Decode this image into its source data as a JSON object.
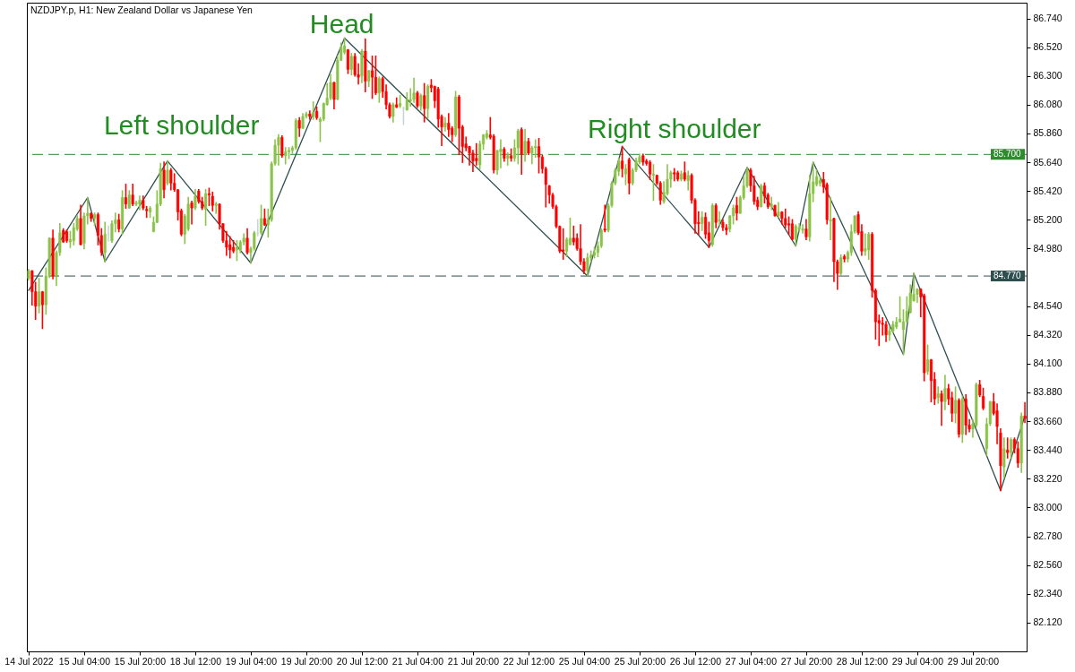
{
  "chart_data": {
    "type": "candlestick",
    "title": "NZDJPY.p, H1:  New Zealand Dollar vs Japanese Yen",
    "categories": [
      "14 Jul 2022",
      null,
      null,
      null,
      null,
      null,
      null,
      null,
      null,
      null,
      null,
      null,
      null,
      null,
      null,
      null,
      "15 Jul 04:00",
      null,
      null,
      null,
      null,
      null,
      null,
      null,
      null,
      null,
      null,
      null,
      null,
      null,
      null,
      null,
      "15 Jul 20:00",
      null,
      null,
      null,
      null,
      null,
      null,
      null,
      null,
      null,
      null,
      null,
      null,
      null,
      null,
      null,
      "18 Jul 12:00",
      null,
      null,
      null,
      null,
      null,
      null,
      null,
      null,
      null,
      null,
      null,
      null,
      null,
      null,
      null,
      "19 Jul 04:00",
      null,
      null,
      null,
      null,
      null,
      null,
      null,
      null,
      null,
      null,
      null,
      null,
      null,
      null,
      null,
      "19 Jul 20:00",
      null,
      null,
      null,
      null,
      null,
      null,
      null,
      null,
      null,
      null,
      null,
      null,
      null,
      null,
      null,
      "20 Jul 12:00",
      null,
      null,
      null,
      null,
      null,
      null,
      null,
      null,
      null,
      null,
      null,
      null,
      null,
      null,
      null,
      "21 Jul 04:00",
      null,
      null,
      null,
      null,
      null,
      null,
      null,
      null,
      null,
      null,
      null,
      null,
      null,
      null,
      null,
      "21 Jul 20:00",
      null,
      null,
      null,
      null,
      null,
      null,
      null,
      null,
      null,
      null,
      null,
      null,
      null,
      null,
      null,
      "22 Jul 12:00",
      null,
      null,
      null,
      null,
      null,
      null,
      null,
      null,
      null,
      null,
      null,
      null,
      null,
      null,
      null,
      "25 Jul 04:00",
      null,
      null,
      null,
      null,
      null,
      null,
      null,
      null,
      null,
      null,
      null,
      null,
      null,
      null,
      null,
      "25 Jul 20:00",
      null,
      null,
      null,
      null,
      null,
      null,
      null,
      null,
      null,
      null,
      null,
      null,
      null,
      null,
      null,
      "26 Jul 12:00",
      null,
      null,
      null,
      null,
      null,
      null,
      null,
      null,
      null,
      null,
      null,
      null,
      null,
      null,
      null,
      "27 Jul 04:00",
      null,
      null,
      null,
      null,
      null,
      null,
      null,
      null,
      null,
      null,
      null,
      null,
      null,
      null,
      null,
      "27 Jul 20:00",
      null,
      null,
      null,
      null,
      null,
      null,
      null,
      null,
      null,
      null,
      null,
      null,
      null,
      null,
      null,
      "28 Jul 12:00",
      null,
      null,
      null,
      null,
      null,
      null,
      null,
      null,
      null,
      null,
      null,
      null,
      null,
      null,
      null,
      "29 Jul 04:00",
      null,
      null,
      null,
      null,
      null,
      null,
      null,
      null,
      null,
      null,
      null,
      null,
      null,
      null,
      null,
      "29 Jul 20:00",
      null,
      null,
      null,
      null,
      null,
      null,
      null,
      null,
      null,
      null,
      null,
      null,
      null,
      null,
      null
    ],
    "ohlc": [
      [
        84.75,
        84.82,
        84.74,
        84.81
      ],
      [
        84.81,
        84.81,
        84.55,
        84.65
      ],
      [
        84.65,
        84.72,
        84.44,
        84.54
      ],
      [
        84.54,
        84.75,
        84.49,
        84.65
      ],
      [
        84.65,
        84.65,
        84.37,
        84.55
      ],
      [
        84.55,
        84.83,
        84.48,
        84.77
      ],
      [
        84.77,
        85.06,
        84.76,
        85.06
      ],
      [
        85.06,
        85.12,
        84.75,
        84.77
      ],
      [
        84.77,
        84.96,
        84.7,
        84.95
      ],
      [
        84.95,
        85.17,
        84.93,
        85.1
      ],
      [
        85.12,
        85.13,
        85.03,
        85.03
      ],
      [
        85.11,
        85.12,
        85.03,
        85.04
      ],
      [
        85.03,
        85.11,
        84.99,
        85.05
      ],
      [
        85.04,
        85.17,
        85.01,
        85.14
      ],
      [
        85.13,
        85.23,
        85.12,
        85.21
      ],
      [
        85.21,
        85.31,
        85.01,
        85.01
      ],
      [
        85.02,
        85.25,
        84.98,
        85.23
      ],
      [
        85.23,
        85.37,
        85.17,
        85.25
      ],
      [
        85.25,
        85.25,
        85.19,
        85.21
      ],
      [
        85.21,
        85.25,
        85.16,
        85.24
      ],
      [
        85.24,
        85.25,
        85.01,
        85.08
      ],
      [
        85.08,
        85.13,
        84.93,
        84.95
      ],
      [
        84.95,
        85.18,
        84.88,
        85.09
      ],
      [
        85.09,
        85.15,
        85.04,
        85.09
      ],
      [
        85.04,
        85.19,
        85.03,
        85.17
      ],
      [
        85.17,
        85.25,
        85.11,
        85.2
      ],
      [
        85.2,
        85.24,
        85.11,
        85.13
      ],
      [
        85.13,
        85.42,
        85.09,
        85.37
      ],
      [
        85.37,
        85.47,
        85.29,
        85.32
      ],
      [
        85.29,
        85.42,
        85.29,
        85.39
      ],
      [
        85.39,
        85.47,
        85.31,
        85.32
      ],
      [
        85.32,
        85.34,
        85.31,
        85.33
      ],
      [
        85.32,
        85.38,
        85.28,
        85.35
      ],
      [
        85.35,
        85.38,
        85.28,
        85.29
      ],
      [
        85.28,
        85.3,
        85.22,
        85.27
      ],
      [
        85.26,
        85.3,
        85.22,
        85.29
      ],
      [
        85.11,
        85.22,
        85.11,
        85.18
      ],
      [
        85.18,
        85.42,
        85.18,
        85.32
      ],
      [
        85.32,
        85.63,
        85.31,
        85.59
      ],
      [
        85.58,
        85.64,
        85.37,
        85.43
      ],
      [
        85.48,
        85.65,
        85.47,
        85.58
      ],
      [
        85.58,
        85.59,
        85.43,
        85.48
      ],
      [
        85.48,
        85.55,
        85.42,
        85.43
      ],
      [
        85.43,
        85.43,
        85.2,
        85.26
      ],
      [
        85.27,
        85.28,
        85.08,
        85.09
      ],
      [
        85.09,
        85.24,
        85.02,
        85.23
      ],
      [
        85.13,
        85.37,
        85.12,
        85.32
      ],
      [
        85.33,
        85.34,
        85.17,
        85.29
      ],
      [
        85.29,
        85.43,
        85.28,
        85.38
      ],
      [
        85.42,
        85.43,
        85.33,
        85.34
      ],
      [
        85.34,
        85.37,
        85.28,
        85.29
      ],
      [
        85.28,
        85.43,
        85.16,
        85.4
      ],
      [
        85.4,
        85.44,
        85.31,
        85.39
      ],
      [
        85.38,
        85.41,
        85.27,
        85.31
      ],
      [
        85.31,
        85.33,
        85.25,
        85.32
      ],
      [
        85.32,
        85.32,
        85.13,
        85.17
      ],
      [
        85.17,
        85.17,
        85.03,
        85.04
      ],
      [
        85.04,
        85.11,
        84.93,
        84.99
      ],
      [
        85.01,
        85.07,
        84.91,
        84.97
      ],
      [
        84.99,
        85.04,
        84.95,
        84.96
      ],
      [
        84.97,
        85.04,
        84.89,
        84.99
      ],
      [
        84.97,
        85.04,
        84.95,
        85.03
      ],
      [
        85.03,
        85.09,
        85.01,
        85.06
      ],
      [
        85.06,
        85.13,
        84.94,
        84.95
      ],
      [
        84.95,
        84.99,
        84.87,
        84.98
      ],
      [
        84.98,
        85.11,
        84.97,
        85.1
      ],
      [
        85.1,
        85.2,
        85.08,
        85.1
      ],
      [
        85.1,
        85.31,
        85.09,
        85.21
      ],
      [
        85.21,
        85.28,
        85.16,
        85.16
      ],
      [
        85.16,
        85.28,
        85.07,
        85.2
      ],
      [
        85.2,
        85.64,
        85.19,
        85.63
      ],
      [
        85.63,
        85.81,
        85.62,
        85.77
      ],
      [
        85.77,
        85.85,
        85.62,
        85.83
      ],
      [
        85.83,
        85.84,
        85.68,
        85.69
      ],
      [
        85.69,
        85.75,
        85.63,
        85.72
      ],
      [
        85.72,
        85.75,
        85.67,
        85.73
      ],
      [
        85.73,
        85.76,
        85.71,
        85.75
      ],
      [
        85.75,
        85.97,
        85.74,
        85.96
      ],
      [
        85.96,
        85.98,
        85.84,
        85.9
      ],
      [
        85.9,
        86.01,
        85.9,
        85.99
      ],
      [
        85.99,
        86.02,
        85.98,
        86.01
      ],
      [
        86.01,
        86.03,
        85.97,
        85.99
      ],
      [
        85.99,
        86.1,
        85.97,
        86.02
      ],
      [
        86.03,
        86.06,
        85.97,
        85.98
      ],
      [
        85.95,
        85.98,
        85.8,
        85.97
      ],
      [
        85.97,
        86.09,
        85.96,
        86.09
      ],
      [
        86.08,
        86.24,
        86.08,
        86.13
      ],
      [
        86.13,
        86.31,
        86.12,
        86.25
      ],
      [
        86.25,
        86.25,
        86.05,
        86.12
      ],
      [
        86.12,
        86.45,
        86.12,
        86.42
      ],
      [
        86.42,
        86.55,
        86.42,
        86.52
      ],
      [
        86.48,
        86.59,
        86.47,
        86.53
      ],
      [
        86.5,
        86.5,
        86.32,
        86.35
      ],
      [
        86.35,
        86.47,
        86.31,
        86.45
      ],
      [
        86.45,
        86.47,
        86.3,
        86.31
      ],
      [
        86.31,
        86.39,
        86.24,
        86.29
      ],
      [
        86.3,
        86.5,
        86.25,
        86.49
      ],
      [
        86.49,
        86.58,
        86.18,
        86.26
      ],
      [
        86.26,
        86.34,
        86.22,
        86.34
      ],
      [
        86.34,
        86.45,
        86.13,
        86.29
      ],
      [
        86.29,
        86.45,
        86.16,
        86.17
      ],
      [
        86.17,
        86.29,
        86.1,
        86.28
      ],
      [
        86.28,
        86.29,
        86.14,
        86.18
      ],
      [
        86.18,
        86.23,
        86.05,
        86.08
      ],
      [
        86.08,
        86.09,
        85.98,
        85.99
      ],
      [
        85.99,
        86.09,
        85.95,
        86.08
      ],
      [
        86.08,
        86.13,
        86.06,
        86.06
      ],
      [
        86.07,
        86.15,
        86.06,
        86.09
      ],
      [
        86.05,
        86.06,
        85.93,
        86.05
      ],
      [
        86.04,
        86.17,
        86.04,
        86.12
      ],
      [
        86.11,
        86.2,
        86.07,
        86.12
      ],
      [
        86.12,
        86.28,
        86.1,
        86.17
      ],
      [
        86.17,
        86.18,
        86.06,
        86.07
      ],
      [
        86.07,
        86.16,
        86.04,
        86.15
      ],
      [
        86.15,
        86.24,
        85.95,
        86.05
      ],
      [
        86.05,
        86.23,
        85.98,
        86.22
      ],
      [
        86.23,
        86.27,
        86.18,
        86.21
      ],
      [
        86.22,
        86.22,
        86.06,
        86.11
      ],
      [
        86.2,
        86.21,
        85.91,
        85.97
      ],
      [
        85.99,
        86.0,
        85.77,
        85.91
      ],
      [
        85.91,
        85.98,
        85.88,
        85.94
      ],
      [
        85.94,
        86.01,
        85.84,
        85.89
      ],
      [
        85.9,
        85.91,
        85.8,
        85.85
      ],
      [
        85.85,
        86.18,
        85.84,
        86.14
      ],
      [
        86.14,
        86.15,
        85.7,
        85.9
      ],
      [
        85.91,
        85.92,
        85.64,
        85.76
      ],
      [
        85.78,
        85.83,
        85.73,
        85.75
      ],
      [
        85.76,
        85.76,
        85.62,
        85.71
      ],
      [
        85.71,
        85.73,
        85.57,
        85.65
      ],
      [
        85.67,
        85.78,
        85.62,
        85.65
      ],
      [
        85.62,
        85.8,
        85.59,
        85.78
      ],
      [
        85.78,
        85.85,
        85.74,
        85.85
      ],
      [
        85.83,
        85.88,
        85.82,
        85.86
      ],
      [
        85.85,
        85.98,
        85.82,
        85.83
      ],
      [
        85.84,
        85.85,
        85.56,
        85.58
      ],
      [
        85.58,
        85.73,
        85.55,
        85.73
      ],
      [
        85.72,
        85.81,
        85.6,
        85.74
      ],
      [
        85.74,
        85.75,
        85.65,
        85.67
      ],
      [
        85.67,
        85.71,
        85.62,
        85.69
      ],
      [
        85.69,
        85.74,
        85.65,
        85.67
      ],
      [
        85.67,
        85.81,
        85.65,
        85.75
      ],
      [
        85.75,
        85.89,
        85.63,
        85.88
      ],
      [
        85.89,
        85.9,
        85.55,
        85.7
      ],
      [
        85.7,
        85.89,
        85.65,
        85.8
      ],
      [
        85.8,
        85.82,
        85.7,
        85.71
      ],
      [
        85.71,
        85.76,
        85.63,
        85.75
      ],
      [
        85.75,
        85.81,
        85.68,
        85.76
      ],
      [
        85.76,
        85.82,
        85.56,
        85.68
      ],
      [
        85.68,
        85.69,
        85.56,
        85.59
      ],
      [
        85.59,
        85.6,
        85.3,
        85.47
      ],
      [
        85.46,
        85.46,
        85.33,
        85.39
      ],
      [
        85.39,
        85.4,
        85.29,
        85.3
      ],
      [
        85.3,
        85.31,
        85.14,
        85.15
      ],
      [
        85.15,
        85.15,
        84.95,
        84.96
      ],
      [
        84.97,
        85.13,
        84.9,
        84.96
      ],
      [
        84.96,
        85.06,
        84.92,
        85.05
      ],
      [
        85.01,
        85.21,
        85.01,
        85.06
      ],
      [
        85.06,
        85.15,
        85.01,
        85.03
      ],
      [
        85.06,
        85.09,
        84.97,
        84.98
      ],
      [
        84.98,
        85.16,
        84.86,
        84.88
      ],
      [
        84.88,
        84.9,
        84.79,
        84.81
      ],
      [
        84.81,
        84.94,
        84.77,
        84.91
      ],
      [
        84.91,
        84.96,
        84.88,
        84.93
      ],
      [
        84.93,
        84.99,
        84.91,
        84.95
      ],
      [
        84.95,
        85.03,
        84.92,
        85.0
      ],
      [
        85.0,
        85.13,
        84.99,
        85.12
      ],
      [
        85.13,
        85.31,
        85.11,
        85.12
      ],
      [
        85.12,
        85.32,
        85.11,
        85.31
      ],
      [
        85.31,
        85.49,
        85.3,
        85.48
      ],
      [
        85.48,
        85.59,
        85.47,
        85.58
      ],
      [
        85.57,
        85.67,
        85.54,
        85.65
      ],
      [
        85.65,
        85.76,
        85.53,
        85.59
      ],
      [
        85.55,
        85.62,
        85.47,
        85.59
      ],
      [
        85.66,
        85.67,
        85.4,
        85.48
      ],
      [
        85.48,
        85.59,
        85.47,
        85.58
      ],
      [
        85.58,
        85.67,
        85.57,
        85.65
      ],
      [
        85.64,
        85.7,
        85.63,
        85.68
      ],
      [
        85.69,
        85.7,
        85.62,
        85.64
      ],
      [
        85.65,
        85.66,
        85.62,
        85.63
      ],
      [
        85.64,
        85.65,
        85.51,
        85.55
      ],
      [
        85.54,
        85.62,
        85.35,
        85.55
      ],
      [
        85.54,
        85.54,
        85.47,
        85.48
      ],
      [
        85.48,
        85.49,
        85.32,
        85.35
      ],
      [
        85.34,
        85.49,
        85.33,
        85.41
      ],
      [
        85.4,
        85.62,
        85.39,
        85.51
      ],
      [
        85.51,
        85.57,
        85.45,
        85.56
      ],
      [
        85.56,
        85.59,
        85.5,
        85.55
      ],
      [
        85.56,
        85.57,
        85.5,
        85.51
      ],
      [
        85.51,
        85.57,
        85.5,
        85.55
      ],
      [
        85.56,
        85.64,
        85.5,
        85.51
      ],
      [
        85.5,
        85.57,
        85.43,
        85.54
      ],
      [
        85.54,
        85.55,
        85.33,
        85.35
      ],
      [
        85.35,
        85.36,
        85.1,
        85.17
      ],
      [
        85.18,
        85.26,
        85.09,
        85.17
      ],
      [
        85.17,
        85.26,
        85.12,
        85.22
      ],
      [
        85.22,
        85.25,
        85.06,
        85.09
      ],
      [
        85.1,
        85.18,
        84.99,
        85.04
      ],
      [
        85.01,
        85.32,
        85.0,
        85.31
      ],
      [
        85.31,
        85.32,
        85.14,
        85.18
      ],
      [
        85.19,
        85.26,
        85.16,
        85.2
      ],
      [
        85.18,
        85.2,
        85.12,
        85.14
      ],
      [
        85.14,
        85.16,
        85.09,
        85.12
      ],
      [
        85.13,
        85.23,
        85.11,
        85.23
      ],
      [
        85.23,
        85.31,
        85.17,
        85.29
      ],
      [
        85.31,
        85.37,
        85.2,
        85.25
      ],
      [
        85.25,
        85.38,
        85.25,
        85.37
      ],
      [
        85.37,
        85.53,
        85.36,
        85.46
      ],
      [
        85.46,
        85.6,
        85.45,
        85.58
      ],
      [
        85.58,
        85.59,
        85.42,
        85.46
      ],
      [
        85.46,
        85.53,
        85.32,
        85.34
      ],
      [
        85.35,
        85.37,
        85.28,
        85.3
      ],
      [
        85.3,
        85.47,
        85.3,
        85.46
      ],
      [
        85.46,
        85.48,
        85.33,
        85.38
      ],
      [
        85.39,
        85.4,
        85.29,
        85.3
      ],
      [
        85.3,
        85.37,
        85.28,
        85.32
      ],
      [
        85.31,
        85.31,
        85.23,
        85.23
      ],
      [
        85.23,
        85.33,
        85.22,
        85.26
      ],
      [
        85.26,
        85.26,
        85.17,
        85.21
      ],
      [
        85.21,
        85.28,
        85.14,
        85.16
      ],
      [
        85.17,
        85.22,
        85.09,
        85.16
      ],
      [
        85.17,
        85.2,
        85.05,
        85.05
      ],
      [
        85.05,
        85.16,
        85.0,
        85.15
      ],
      [
        85.13,
        85.17,
        85.11,
        85.14
      ],
      [
        85.12,
        85.16,
        85.1,
        85.13
      ],
      [
        85.13,
        85.2,
        85.05,
        85.07
      ],
      [
        85.07,
        85.54,
        85.04,
        85.4
      ],
      [
        85.4,
        85.64,
        85.34,
        85.49
      ],
      [
        85.47,
        85.58,
        85.46,
        85.53
      ],
      [
        85.48,
        85.53,
        85.46,
        85.5
      ],
      [
        85.51,
        85.56,
        85.41,
        85.45
      ],
      [
        85.47,
        85.48,
        85.17,
        85.2
      ],
      [
        85.19,
        85.37,
        85.05,
        85.2
      ],
      [
        85.21,
        85.21,
        84.73,
        84.88
      ],
      [
        84.88,
        84.89,
        84.67,
        84.79
      ],
      [
        84.79,
        84.93,
        84.78,
        84.91
      ],
      [
        84.92,
        84.93,
        84.88,
        84.9
      ],
      [
        84.9,
        84.96,
        84.88,
        84.95
      ],
      [
        84.95,
        85.16,
        84.93,
        85.11
      ],
      [
        85.11,
        85.23,
        85.1,
        85.23
      ],
      [
        85.24,
        85.26,
        85.09,
        85.1
      ],
      [
        85.11,
        85.16,
        84.93,
        84.96
      ],
      [
        84.96,
        85.09,
        84.93,
        84.98
      ],
      [
        84.97,
        85.1,
        84.9,
        85.09
      ],
      [
        85.09,
        85.1,
        84.61,
        84.66
      ],
      [
        84.66,
        84.67,
        84.29,
        84.42
      ],
      [
        84.43,
        84.47,
        84.24,
        84.41
      ],
      [
        84.41,
        84.45,
        84.32,
        84.4
      ],
      [
        84.4,
        84.42,
        84.27,
        84.32
      ],
      [
        84.32,
        84.38,
        84.28,
        84.35
      ],
      [
        84.35,
        84.42,
        84.34,
        84.4
      ],
      [
        84.38,
        84.45,
        84.37,
        84.42
      ],
      [
        84.42,
        84.61,
        84.42,
        84.44
      ],
      [
        84.36,
        84.51,
        84.17,
        84.42
      ],
      [
        84.42,
        84.61,
        84.42,
        84.5
      ],
      [
        84.49,
        84.7,
        84.49,
        84.64
      ],
      [
        84.58,
        84.79,
        84.58,
        84.63
      ],
      [
        84.63,
        84.67,
        84.57,
        84.67
      ],
      [
        84.67,
        84.67,
        84.46,
        84.61
      ],
      [
        84.62,
        84.63,
        83.97,
        84.03
      ],
      [
        84.04,
        84.24,
        84.02,
        84.13
      ],
      [
        84.13,
        84.13,
        83.81,
        83.97
      ],
      [
        83.98,
        84.03,
        83.79,
        83.83
      ],
      [
        83.84,
        83.92,
        83.8,
        83.87
      ],
      [
        83.87,
        83.89,
        83.63,
        83.81
      ],
      [
        83.81,
        84.01,
        83.75,
        83.91
      ],
      [
        83.91,
        83.94,
        83.79,
        83.83
      ],
      [
        83.84,
        83.88,
        83.66,
        83.72
      ],
      [
        83.72,
        83.92,
        83.65,
        83.82
      ],
      [
        83.82,
        83.83,
        83.54,
        83.56
      ],
      [
        83.56,
        83.85,
        83.5,
        83.83
      ],
      [
        83.83,
        83.86,
        83.56,
        83.63
      ],
      [
        83.63,
        83.67,
        83.58,
        83.6
      ],
      [
        83.6,
        83.67,
        83.54,
        83.64
      ],
      [
        83.63,
        83.95,
        83.62,
        83.94
      ],
      [
        83.94,
        83.97,
        83.85,
        83.86
      ],
      [
        83.85,
        83.91,
        83.75,
        83.76
      ],
      [
        83.45,
        83.68,
        83.4,
        83.64
      ],
      [
        83.64,
        83.81,
        83.63,
        83.81
      ],
      [
        83.81,
        83.87,
        83.71,
        83.72
      ],
      [
        83.74,
        83.79,
        83.49,
        83.62
      ],
      [
        83.57,
        83.6,
        83.13,
        83.32
      ],
      [
        83.31,
        83.53,
        83.23,
        83.45
      ],
      [
        83.44,
        83.53,
        83.38,
        83.42
      ],
      [
        83.42,
        83.53,
        83.38,
        83.52
      ],
      [
        83.52,
        83.53,
        83.42,
        83.45
      ],
      [
        83.45,
        83.5,
        83.31,
        83.34
      ],
      [
        83.34,
        83.72,
        83.27,
        83.7
      ],
      [
        83.7,
        83.8,
        83.65,
        83.68
      ]
    ],
    "colors": [
      "#8bc34a",
      "#ff0000",
      "#ff0000",
      "#8bc34a",
      "#ff0000",
      "#8bc34a",
      "#8bc34a",
      "#ff0000",
      "#8bc34a",
      "#8bc34a",
      "#ff0000",
      "#ff0000",
      "#8bc34a",
      "#8bc34a",
      "#8bc34a",
      "#ff0000",
      "#8bc34a",
      "#8bc34a",
      "#ff0000",
      "#8bc34a",
      "#ff0000",
      "#ff0000",
      "#8bc34a",
      "#c8d4d8",
      "#8bc34a",
      "#8bc34a",
      "#ff0000",
      "#8bc34a",
      "#ff0000",
      "#8bc34a",
      "#ff0000",
      "#8bc34a",
      "#8bc34a",
      "#ff0000",
      "#ff0000",
      "#8bc34a",
      "#8bc34a",
      "#8bc34a",
      "#8bc34a",
      "#ff0000",
      "#8bc34a",
      "#ff0000",
      "#ff0000",
      "#ff0000",
      "#ff0000",
      "#8bc34a",
      "#8bc34a",
      "#ff0000",
      "#8bc34a",
      "#ff0000",
      "#ff0000",
      "#8bc34a",
      "#ff0000",
      "#ff0000",
      "#8bc34a",
      "#ff0000",
      "#ff0000",
      "#ff0000",
      "#ff0000",
      "#ff0000",
      "#8bc34a",
      "#8bc34a",
      "#8bc34a",
      "#ff0000",
      "#8bc34a",
      "#8bc34a",
      "#c8d4d8",
      "#8bc34a",
      "#ff0000",
      "#8bc34a",
      "#8bc34a",
      "#8bc34a",
      "#8bc34a",
      "#ff0000",
      "#8bc34a",
      "#8bc34a",
      "#8bc34a",
      "#8bc34a",
      "#ff0000",
      "#8bc34a",
      "#8bc34a",
      "#ff0000",
      "#8bc34a",
      "#ff0000",
      "#8bc34a",
      "#8bc34a",
      "#8bc34a",
      "#8bc34a",
      "#ff0000",
      "#8bc34a",
      "#8bc34a",
      "#8bc34a",
      "#ff0000",
      "#8bc34a",
      "#ff0000",
      "#ff0000",
      "#8bc34a",
      "#ff0000",
      "#8bc34a",
      "#ff0000",
      "#ff0000",
      "#8bc34a",
      "#ff0000",
      "#ff0000",
      "#ff0000",
      "#8bc34a",
      "#ff0000",
      "#8bc34a",
      "#c8d4d8",
      "#8bc34a",
      "#8bc34a",
      "#8bc34a",
      "#ff0000",
      "#8bc34a",
      "#ff0000",
      "#8bc34a",
      "#ff0000",
      "#ff0000",
      "#ff0000",
      "#ff0000",
      "#8bc34a",
      "#ff0000",
      "#ff0000",
      "#8bc34a",
      "#ff0000",
      "#ff0000",
      "#ff0000",
      "#ff0000",
      "#ff0000",
      "#ff0000",
      "#8bc34a",
      "#8bc34a",
      "#8bc34a",
      "#ff0000",
      "#ff0000",
      "#8bc34a",
      "#8bc34a",
      "#ff0000",
      "#8bc34a",
      "#ff0000",
      "#8bc34a",
      "#8bc34a",
      "#ff0000",
      "#8bc34a",
      "#ff0000",
      "#8bc34a",
      "#8bc34a",
      "#ff0000",
      "#ff0000",
      "#ff0000",
      "#ff0000",
      "#ff0000",
      "#ff0000",
      "#ff0000",
      "#ff0000",
      "#8bc34a",
      "#8bc34a",
      "#ff0000",
      "#ff0000",
      "#ff0000",
      "#ff0000",
      "#8bc34a",
      "#8bc34a",
      "#8bc34a",
      "#8bc34a",
      "#8bc34a",
      "#ff0000",
      "#8bc34a",
      "#8bc34a",
      "#8bc34a",
      "#8bc34a",
      "#ff0000",
      "#8bc34a",
      "#ff0000",
      "#8bc34a",
      "#8bc34a",
      "#8bc34a",
      "#ff0000",
      "#ff0000",
      "#ff0000",
      "#8bc34a",
      "#ff0000",
      "#ff0000",
      "#8bc34a",
      "#8bc34a",
      "#8bc34a",
      "#ff0000",
      "#ff0000",
      "#8bc34a",
      "#ff0000",
      "#8bc34a",
      "#ff0000",
      "#ff0000",
      "#ff0000",
      "#8bc34a",
      "#ff0000",
      "#ff0000",
      "#8bc34a",
      "#ff0000",
      "#8bc34a",
      "#ff0000",
      "#ff0000",
      "#8bc34a",
      "#8bc34a",
      "#ff0000",
      "#8bc34a",
      "#8bc34a",
      "#8bc34a",
      "#ff0000",
      "#ff0000",
      "#ff0000",
      "#8bc34a",
      "#ff0000",
      "#ff0000",
      "#8bc34a",
      "#ff0000",
      "#8bc34a",
      "#ff0000",
      "#ff0000",
      "#ff0000",
      "#ff0000",
      "#8bc34a",
      "#8bc34a",
      "#8bc34a",
      "#ff0000",
      "#8bc34a",
      "#8bc34a",
      "#8bc34a",
      "#8bc34a",
      "#ff0000",
      "#ff0000",
      "#8bc34a",
      "#ff0000",
      "#ff0000",
      "#8bc34a",
      "#ff0000",
      "#8bc34a",
      "#8bc34a",
      "#8bc34a",
      "#ff0000",
      "#ff0000",
      "#8bc34a",
      "#8bc34a",
      "#ff0000",
      "#ff0000",
      "#ff0000",
      "#ff0000",
      "#ff0000",
      "#8bc34a",
      "#8bc34a",
      "#8bc34a",
      "#8bc34a",
      "#8bc34a",
      "#8bc34a",
      "#8bc34a",
      "#8bc34a",
      "#8bc34a",
      "#ff0000",
      "#ff0000",
      "#8bc34a",
      "#ff0000",
      "#ff0000",
      "#8bc34a",
      "#ff0000",
      "#8bc34a",
      "#ff0000",
      "#ff0000",
      "#8bc34a",
      "#ff0000",
      "#8bc34a",
      "#ff0000",
      "#ff0000",
      "#8bc34a",
      "#8bc34a",
      "#ff0000",
      "#ff0000",
      "#8bc34a",
      "#8bc34a",
      "#ff0000",
      "#ff0000",
      "#ff0000",
      "#8bc34a",
      "#ff0000",
      "#8bc34a",
      "#ff0000",
      "#ff0000",
      "#8bc34a",
      "#ff0000"
    ],
    "series": [
      {
        "type": "line",
        "color": "#2f4f4f",
        "values": [
          84.66,
          null,
          null,
          null,
          null,
          null,
          null,
          null,
          null,
          null,
          null,
          null,
          null,
          null,
          null,
          null,
          null,
          85.37,
          null,
          null,
          null,
          null,
          84.88,
          null,
          null,
          null,
          null,
          null,
          null,
          null,
          null,
          null,
          null,
          null,
          null,
          null,
          null,
          null,
          null,
          null,
          85.65,
          null,
          null,
          null,
          null,
          null,
          null,
          null,
          null,
          null,
          null,
          null,
          null,
          null,
          null,
          null,
          null,
          null,
          null,
          null,
          null,
          null,
          null,
          null,
          84.87,
          null,
          null,
          null,
          null,
          null,
          null,
          null,
          null,
          null,
          null,
          null,
          null,
          null,
          null,
          null,
          null,
          null,
          null,
          null,
          null,
          null,
          null,
          null,
          null,
          null,
          null,
          86.59,
          null,
          null,
          null,
          null,
          null,
          null,
          null,
          null,
          null,
          null,
          null,
          null,
          null,
          null,
          null,
          null,
          null,
          null,
          null,
          null,
          null,
          null,
          null,
          null,
          null,
          null,
          null,
          null,
          null,
          null,
          null,
          null,
          null,
          null,
          null,
          null,
          null,
          null,
          null,
          null,
          null,
          null,
          null,
          null,
          null,
          null,
          null,
          null,
          null,
          null,
          null,
          null,
          null,
          null,
          null,
          null,
          null,
          null,
          null,
          null,
          null,
          null,
          null,
          null,
          null,
          null,
          null,
          null,
          null,
          84.77,
          null,
          null,
          null,
          null,
          null,
          null,
          null,
          null,
          null,
          85.76,
          null,
          null,
          null,
          null,
          null,
          null,
          null,
          null,
          null,
          null,
          null,
          null,
          null,
          null,
          null,
          null,
          null,
          null,
          null,
          null,
          null,
          null,
          null,
          null,
          84.99,
          null,
          null,
          null,
          null,
          null,
          null,
          null,
          null,
          null,
          null,
          85.6,
          null,
          null,
          null,
          null,
          null,
          null,
          null,
          null,
          null,
          null,
          null,
          null,
          null,
          85.0,
          null,
          null,
          null,
          null,
          85.64,
          null,
          null,
          null,
          null,
          null,
          null,
          null,
          null,
          null,
          null,
          null,
          null,
          null,
          null,
          null,
          null,
          null,
          null,
          null,
          null,
          null,
          null,
          null,
          null,
          null,
          84.17,
          null,
          null,
          84.79,
          null,
          null,
          null,
          null,
          null,
          null,
          null,
          null,
          null,
          null,
          null,
          null,
          null,
          null,
          null,
          null,
          null,
          null,
          null,
          null,
          null,
          null,
          null,
          null,
          83.13,
          null,
          null,
          null,
          null,
          null,
          null,
          83.7
        ]
      }
    ],
    "ylim": [
      81.9,
      86.86
    ],
    "yticks": [
      {
        "value": 86.74,
        "label": "86.740"
      },
      {
        "value": 86.52,
        "label": "86.520"
      },
      {
        "value": 86.3,
        "label": "86.300"
      },
      {
        "value": 86.08,
        "label": "86.080"
      },
      {
        "value": 85.86,
        "label": "85.860"
      },
      {
        "value": 85.64,
        "label": "85.640"
      },
      {
        "value": 85.42,
        "label": "85.420"
      },
      {
        "value": 85.2,
        "label": "85.200"
      },
      {
        "value": 84.98,
        "label": "84.980"
      },
      {
        "value": 84.54,
        "label": "84.540"
      },
      {
        "value": 84.32,
        "label": "84.320"
      },
      {
        "value": 84.1,
        "label": "84.100"
      },
      {
        "value": 83.88,
        "label": "83.880"
      },
      {
        "value": 83.66,
        "label": "83.660"
      },
      {
        "value": 83.44,
        "label": "83.440"
      },
      {
        "value": 83.22,
        "label": "83.220"
      },
      {
        "value": 83.0,
        "label": "83.000"
      },
      {
        "value": 82.78,
        "label": "82.780"
      },
      {
        "value": 82.56,
        "label": "82.560"
      },
      {
        "value": 82.34,
        "label": "82.340"
      },
      {
        "value": 82.12,
        "label": "82.120"
      }
    ],
    "ref_lines": [
      {
        "axis": "y",
        "value": 85.7,
        "label": "85.700",
        "color": "#2e8b2e",
        "line_style": "dashed"
      },
      {
        "axis": "y",
        "value": 84.77,
        "label": "84.770",
        "color": "#2f4f4f",
        "line_style": "dashed"
      }
    ],
    "annotations": [
      "Head",
      "Left shoulder",
      "Right shoulder"
    ]
  }
}
